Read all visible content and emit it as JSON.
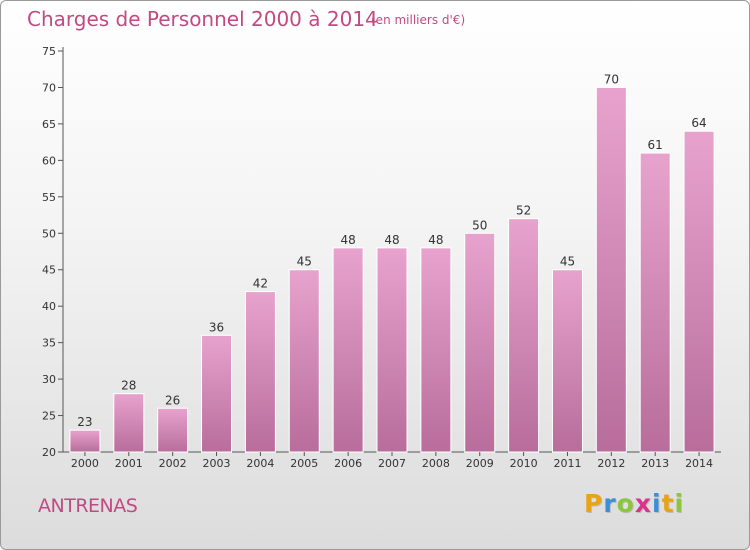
{
  "header": {
    "title": "Charges de Personnel 2000 à 2014",
    "subtitle": "(en milliers d'€)"
  },
  "footer": {
    "commune": "ANTRENAS",
    "brand": "Proxiti",
    "brand_letters": [
      {
        "char": "P",
        "color": "#e8a317"
      },
      {
        "char": "r",
        "color": "#3a8fd6"
      },
      {
        "char": "o",
        "color": "#8cc63f"
      },
      {
        "char": "x",
        "color": "#d9338c"
      },
      {
        "char": "i",
        "color": "#3a8fd6"
      },
      {
        "char": "t",
        "color": "#e8a317"
      },
      {
        "char": "i",
        "color": "#8cc63f"
      }
    ]
  },
  "colors": {
    "bar_top": "#e7a3cd",
    "bar_bottom": "#b86d9b",
    "bar_edge": "#ffffff",
    "axis": "#555555",
    "title": "#c24a84"
  },
  "chart_data": {
    "type": "bar",
    "title": "Charges de Personnel 2000 à 2014",
    "subtitle": "(en milliers d'€)",
    "xlabel": "",
    "ylabel": "",
    "categories": [
      "2000",
      "2001",
      "2002",
      "2003",
      "2004",
      "2005",
      "2006",
      "2007",
      "2008",
      "2009",
      "2010",
      "2011",
      "2012",
      "2013",
      "2014"
    ],
    "values": [
      23,
      28,
      26,
      36,
      42,
      45,
      48,
      48,
      48,
      50,
      52,
      45,
      70,
      61,
      64
    ],
    "ylim": [
      20,
      75
    ],
    "yticks": [
      20,
      25,
      30,
      35,
      40,
      45,
      50,
      55,
      60,
      65,
      70,
      75
    ],
    "grid": false,
    "legend": "none"
  }
}
